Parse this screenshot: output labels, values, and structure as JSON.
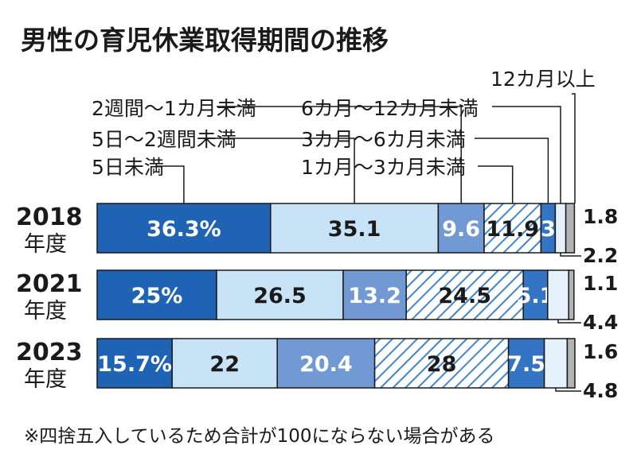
{
  "chart_data": {
    "type": "bar",
    "orientation": "horizontal-stacked-100",
    "title": "男性の育児休業取得期間の推移",
    "categories": [
      {
        "year": "2018",
        "suffix": "年度"
      },
      {
        "year": "2021",
        "suffix": "年度"
      },
      {
        "year": "2023",
        "suffix": "年度"
      }
    ],
    "series": [
      {
        "name": "5日未満",
        "color": "#1f64b4",
        "text_color": "#ffffff",
        "pattern": false,
        "values": [
          36.3,
          25,
          15.7
        ],
        "labels": [
          "36.3%",
          "25%",
          "15.7%"
        ]
      },
      {
        "name": "5日～2週間未満",
        "color": "#c8e3f6",
        "text_color": "#1a1a1a",
        "pattern": false,
        "values": [
          35.1,
          26.5,
          22
        ],
        "labels": [
          "35.1",
          "26.5",
          "22"
        ]
      },
      {
        "name": "2週間～1カ月未満",
        "color": "#7199d3",
        "text_color": "#ffffff",
        "pattern": false,
        "values": [
          9.6,
          13.2,
          20.4
        ],
        "labels": [
          "9.6",
          "13.2",
          "20.4"
        ]
      },
      {
        "name": "1カ月～3カ月未満",
        "color": "#3f86cf",
        "text_color": "#1a1a1a",
        "pattern": true,
        "values": [
          11.9,
          24.5,
          28
        ],
        "labels": [
          "11.9",
          "24.5",
          "28"
        ]
      },
      {
        "name": "3カ月～6カ月未満",
        "color": "#3474c4",
        "text_color": "#ffffff",
        "pattern": false,
        "values": [
          3,
          5.1,
          7.5
        ],
        "labels": [
          "3",
          "5.1",
          "7.5"
        ]
      },
      {
        "name": "6カ月～12カ月未満",
        "color": "#e6f2fb",
        "text_color": "#1a1a1a",
        "pattern": false,
        "values": [
          2.2,
          4.4,
          4.8
        ],
        "labels": [
          "2.2",
          "4.4",
          "4.8"
        ]
      },
      {
        "name": "12カ月以上",
        "color": "#b3b3b3",
        "text_color": "#1a1a1a",
        "pattern": false,
        "values": [
          1.8,
          1.1,
          1.6
        ],
        "labels": [
          "1.8",
          "1.1",
          "1.6"
        ]
      }
    ],
    "legend_placement": "top, with leader lines",
    "grid": false,
    "note": "※四捨五入しているため合計が100にならない場合がある"
  }
}
